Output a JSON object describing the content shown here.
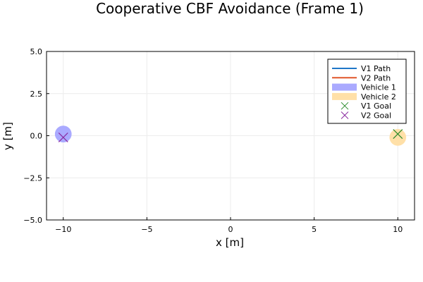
{
  "chart_data": {
    "type": "scatter",
    "title": "Cooperative CBF Avoidance (Frame 1)",
    "xlabel": "x [m]",
    "ylabel": "y [m]",
    "xlim": [
      -11,
      11
    ],
    "ylim": [
      -5,
      5
    ],
    "x_ticks": [
      -10,
      -5,
      0,
      5,
      10
    ],
    "x_tick_labels": [
      "−10",
      "−5",
      "0",
      "5",
      "10"
    ],
    "y_ticks": [
      -5,
      -2.5,
      0,
      2.5,
      5
    ],
    "y_tick_labels": [
      "−5.0",
      "−2.5",
      "0.0",
      "2.5",
      "5.0"
    ],
    "grid": true,
    "legend_position": "top-right",
    "series": [
      {
        "name": "V1 Path",
        "kind": "line",
        "color": "#1f77c8",
        "x": [
          -10
        ],
        "y": [
          0.1
        ]
      },
      {
        "name": "V2 Path",
        "kind": "line",
        "color": "#e0562a",
        "x": [
          10
        ],
        "y": [
          -0.1
        ]
      },
      {
        "name": "Vehicle 1",
        "kind": "circle",
        "color": "#aaaaff",
        "x": [
          -10
        ],
        "y": [
          0.1
        ],
        "radius": 0.5
      },
      {
        "name": "Vehicle 2",
        "kind": "circle",
        "color": "#ffe0a8",
        "x": [
          10
        ],
        "y": [
          -0.1
        ],
        "radius": 0.5
      },
      {
        "name": "V1 Goal",
        "kind": "x-marker",
        "color": "#2a8a2a",
        "x": [
          10
        ],
        "y": [
          0.1
        ]
      },
      {
        "name": "V2 Goal",
        "kind": "x-marker",
        "color": "#8a2aa0",
        "x": [
          -10
        ],
        "y": [
          -0.1
        ]
      }
    ]
  }
}
